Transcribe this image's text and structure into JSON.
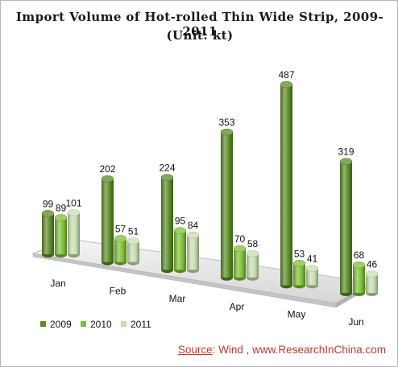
{
  "chart_data": {
    "type": "bar",
    "title": "Import Volume of Hot-rolled Thin Wide Strip, 2009-2011",
    "subtitle": "(Unit: kt)",
    "categories": [
      "Jan",
      "Feb",
      "Mar",
      "Apr",
      "May",
      "Jun"
    ],
    "series": [
      {
        "name": "2009",
        "values": [
          99,
          202,
          224,
          353,
          487,
          319
        ],
        "color": "#5a8a26"
      },
      {
        "name": "2010",
        "values": [
          89,
          57,
          95,
          70,
          53,
          68
        ],
        "color": "#7fbf35"
      },
      {
        "name": "2011",
        "values": [
          101,
          51,
          84,
          58,
          41,
          46
        ],
        "color": "#c6ddb0"
      }
    ],
    "ylim": [
      0,
      500
    ],
    "grid": false,
    "legend_position": "bottom-left",
    "style": "3d-cylinder"
  },
  "source": {
    "label": "Source",
    "text": ": Wind , www.ResearchInChina.com",
    "color": "#c0392b"
  }
}
